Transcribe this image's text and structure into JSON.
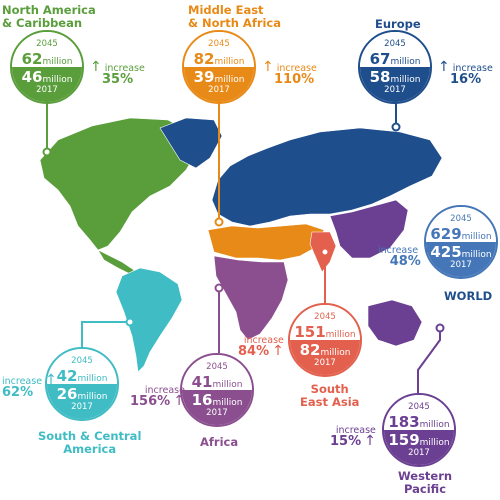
{
  "colors": {
    "north_america": "#5a9e3c",
    "middle_east": "#e88a17",
    "europe": "#1f4e8c",
    "world": "#4577b8",
    "south_central": "#3fbcc4",
    "africa": "#8b4f8f",
    "se_asia": "#e2604d",
    "western_pacific": "#6b3f91"
  },
  "regions": [
    {
      "key": "north_america",
      "name": "North America & Caribbean",
      "name_lines": [
        "North America",
        "& Caribbean"
      ],
      "year_top": "2045",
      "value_2045": "62",
      "year_bottom": "2017",
      "value_2017": "46",
      "unit": "million",
      "increase_label": "increase",
      "increase_pct": "35%"
    },
    {
      "key": "middle_east",
      "name": "Middle East & North Africa",
      "name_lines": [
        "Middle East",
        "& North Africa"
      ],
      "year_top": "2045",
      "value_2045": "82",
      "year_bottom": "2017",
      "value_2017": "39",
      "unit": "million",
      "increase_label": "increase",
      "increase_pct": "110%"
    },
    {
      "key": "europe",
      "name": "Europe",
      "name_lines": [
        "Europe"
      ],
      "year_top": "2045",
      "value_2045": "67",
      "year_bottom": "2017",
      "value_2017": "58",
      "unit": "million",
      "increase_label": "increase",
      "increase_pct": "16%"
    },
    {
      "key": "world",
      "name": "WORLD",
      "name_lines": [
        "WORLD"
      ],
      "year_top": "2045",
      "value_2045": "629",
      "year_bottom": "2017",
      "value_2017": "425",
      "unit": "million",
      "increase_label": "increase",
      "increase_pct": "48%"
    },
    {
      "key": "south_central",
      "name": "South & Central America",
      "name_lines": [
        "South & Central",
        "America"
      ],
      "year_top": "2045",
      "value_2045": "42",
      "year_bottom": "2017",
      "value_2017": "26",
      "unit": "million",
      "increase_label": "increase",
      "increase_pct": "62%"
    },
    {
      "key": "africa",
      "name": "Africa",
      "name_lines": [
        "Africa"
      ],
      "year_top": "2045",
      "value_2045": "41",
      "year_bottom": "2017",
      "value_2017": "16",
      "unit": "million",
      "increase_label": "increase",
      "increase_pct": "156%"
    },
    {
      "key": "se_asia",
      "name": "South East Asia",
      "name_lines": [
        "South",
        "East Asia"
      ],
      "year_top": "2045",
      "value_2045": "151",
      "year_bottom": "2017",
      "value_2017": "82",
      "unit": "million",
      "increase_label": "increase",
      "increase_pct": "84%"
    },
    {
      "key": "western_pacific",
      "name": "Western Pacific",
      "name_lines": [
        "Western",
        "Pacific"
      ],
      "year_top": "2045",
      "value_2045": "183",
      "year_bottom": "2017",
      "value_2017": "159",
      "unit": "million",
      "increase_label": "increase",
      "increase_pct": "15%"
    }
  ]
}
